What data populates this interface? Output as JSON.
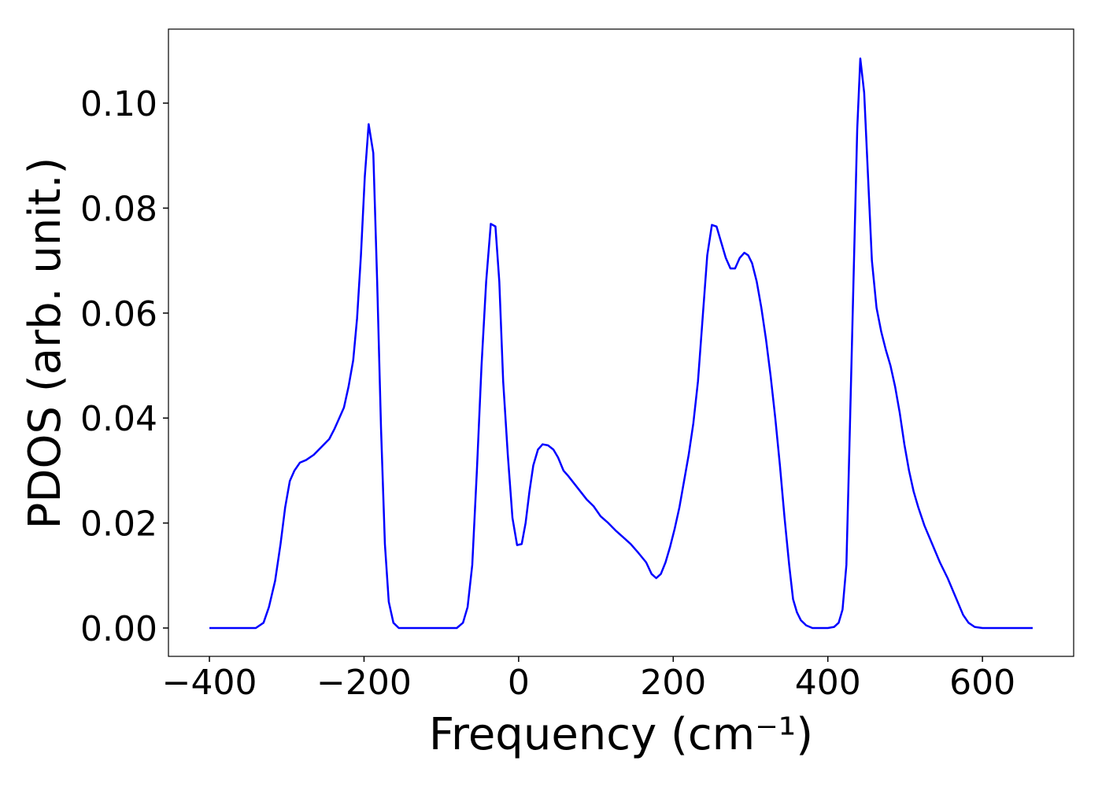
{
  "chart_data": {
    "type": "line",
    "xlabel": "Frequency (cm⁻¹)",
    "ylabel": "PDOS (arb. unit.)",
    "xlim": [
      -453,
      718
    ],
    "ylim": [
      -0.0054,
      0.1141
    ],
    "xticks": [
      {
        "value": -400,
        "label": "−400"
      },
      {
        "value": -200,
        "label": "−200"
      },
      0,
      200,
      400,
      600
    ],
    "yticks": [
      {
        "value": 0,
        "label": "0.00"
      },
      {
        "value": 0.02,
        "label": "0.02"
      },
      {
        "value": 0.04,
        "label": "0.04"
      },
      {
        "value": 0.06,
        "label": "0.06"
      },
      {
        "value": 0.08,
        "label": "0.08"
      },
      {
        "value": 0.1,
        "label": "0.10"
      }
    ],
    "x": [
      -400,
      -340,
      -330,
      -323,
      -315,
      -308,
      -302,
      -296,
      -290,
      -283,
      -275,
      -265,
      -255,
      -245,
      -238,
      -232,
      -226,
      -220,
      -214,
      -209,
      -204,
      -199,
      -194,
      -188,
      -183,
      -178,
      -173,
      -168,
      -162,
      -155,
      -80,
      -72,
      -66,
      -60,
      -54,
      -48,
      -42,
      -36,
      -30,
      -25,
      -20,
      -14,
      -8,
      -2,
      4,
      9,
      14,
      19,
      25,
      31,
      38,
      45,
      51,
      58,
      64,
      72,
      80,
      88,
      97,
      106,
      116,
      126,
      136,
      145,
      155,
      165,
      172,
      178,
      184,
      190,
      196,
      202,
      208,
      214,
      220,
      226,
      232,
      238,
      244,
      250,
      256,
      262,
      268,
      274,
      280,
      286,
      292,
      297,
      302,
      308,
      314,
      320,
      326,
      332,
      338,
      344,
      350,
      355,
      360,
      365,
      372,
      380,
      400,
      408,
      414,
      419,
      424,
      428,
      433,
      438,
      442,
      447,
      452,
      457,
      463,
      469,
      475,
      481,
      487,
      493,
      499,
      505,
      511,
      517,
      525,
      535,
      545,
      555,
      565,
      575,
      582,
      590,
      600,
      665
    ],
    "series": [
      {
        "color": "#0000ff",
        "values": [
          0,
          0,
          0.001,
          0.004,
          0.009,
          0.016,
          0.023,
          0.028,
          0.03,
          0.0315,
          0.032,
          0.033,
          0.0345,
          0.036,
          0.038,
          0.04,
          0.042,
          0.046,
          0.051,
          0.059,
          0.071,
          0.086,
          0.096,
          0.0905,
          0.066,
          0.038,
          0.016,
          0.005,
          0.001,
          0,
          0,
          0.001,
          0.004,
          0.012,
          0.03,
          0.05,
          0.066,
          0.077,
          0.0765,
          0.066,
          0.047,
          0.033,
          0.021,
          0.0158,
          0.016,
          0.02,
          0.026,
          0.031,
          0.034,
          0.035,
          0.0348,
          0.034,
          0.0325,
          0.03,
          0.029,
          0.0275,
          0.026,
          0.0245,
          0.0232,
          0.0213,
          0.02,
          0.0185,
          0.0172,
          0.016,
          0.0143,
          0.0125,
          0.0103,
          0.0095,
          0.0103,
          0.0125,
          0.0155,
          0.019,
          0.023,
          0.028,
          0.033,
          0.039,
          0.047,
          0.059,
          0.071,
          0.0768,
          0.0765,
          0.0735,
          0.0705,
          0.0685,
          0.0685,
          0.0705,
          0.0715,
          0.071,
          0.0695,
          0.066,
          0.061,
          0.055,
          0.048,
          0.04,
          0.031,
          0.021,
          0.012,
          0.0055,
          0.003,
          0.0015,
          0.0005,
          0,
          0,
          0.0002,
          0.001,
          0.0035,
          0.012,
          0.035,
          0.065,
          0.095,
          0.1085,
          0.102,
          0.086,
          0.07,
          0.061,
          0.0565,
          0.053,
          0.05,
          0.046,
          0.041,
          0.035,
          0.03,
          0.026,
          0.023,
          0.0195,
          0.016,
          0.0125,
          0.0095,
          0.006,
          0.0025,
          0.001,
          0.0002,
          0,
          0
        ]
      }
    ]
  }
}
